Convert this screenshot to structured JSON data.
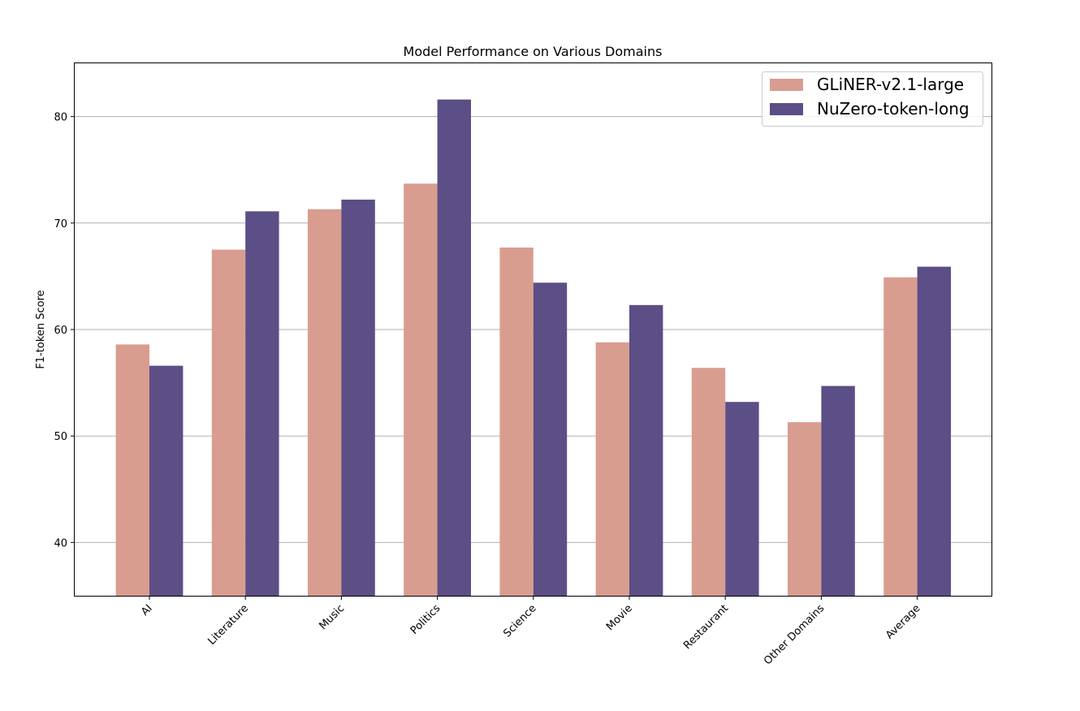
{
  "chart_data": {
    "type": "bar",
    "title": "Model Performance on Various Domains",
    "xlabel": "",
    "ylabel": "F1-token Score",
    "categories": [
      "AI",
      "Literature",
      "Music",
      "Politics",
      "Science",
      "Movie",
      "Restaurant",
      "Other Domains",
      "Average"
    ],
    "series": [
      {
        "name": "GLiNER-v2.1-large",
        "color": "#d99d90",
        "values": [
          58.6,
          67.5,
          71.3,
          73.7,
          67.7,
          58.8,
          56.4,
          51.3,
          64.9
        ]
      },
      {
        "name": "NuZero-token-long",
        "color": "#5c4e86",
        "values": [
          56.6,
          71.1,
          72.2,
          81.6,
          64.4,
          62.3,
          53.2,
          54.7,
          65.9
        ]
      }
    ],
    "ylim": [
      35,
      85
    ],
    "yticks": [
      40,
      50,
      60,
      70,
      80
    ],
    "grid": "y",
    "legend_position": "top-right"
  }
}
